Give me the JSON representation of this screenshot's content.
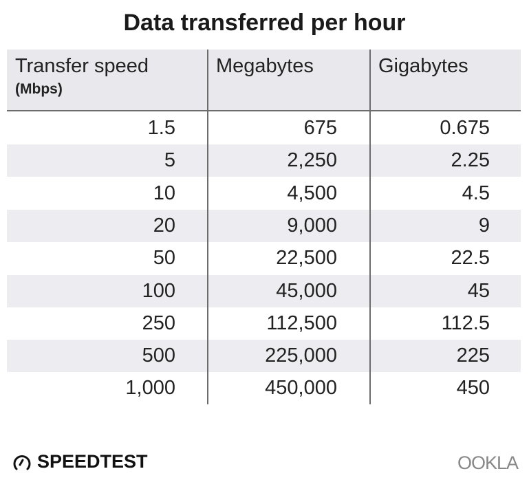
{
  "chart_data": {
    "type": "table",
    "title": "Data transferred per hour",
    "columns": [
      "Transfer speed",
      "Megabytes",
      "Gigabytes"
    ],
    "column_subtitle": "(Mbps)",
    "rows": [
      [
        "1.5",
        "675",
        "0.675"
      ],
      [
        "5",
        "2,250",
        "2.25"
      ],
      [
        "10",
        "4,500",
        "4.5"
      ],
      [
        "20",
        "9,000",
        "9"
      ],
      [
        "50",
        "22,500",
        "22.5"
      ],
      [
        "100",
        "45,000",
        "45"
      ],
      [
        "250",
        "112,500",
        "112.5"
      ],
      [
        "500",
        "225,000",
        "225"
      ],
      [
        "1,000",
        "450,000",
        "450"
      ]
    ],
    "row_shading": [
      "#ffffff",
      "#ededf1"
    ],
    "header_color": "#e8e8ed"
  },
  "branding": {
    "left": "SPEEDTEST",
    "left_icon": "speedometer-icon",
    "right": "OOKLA"
  }
}
